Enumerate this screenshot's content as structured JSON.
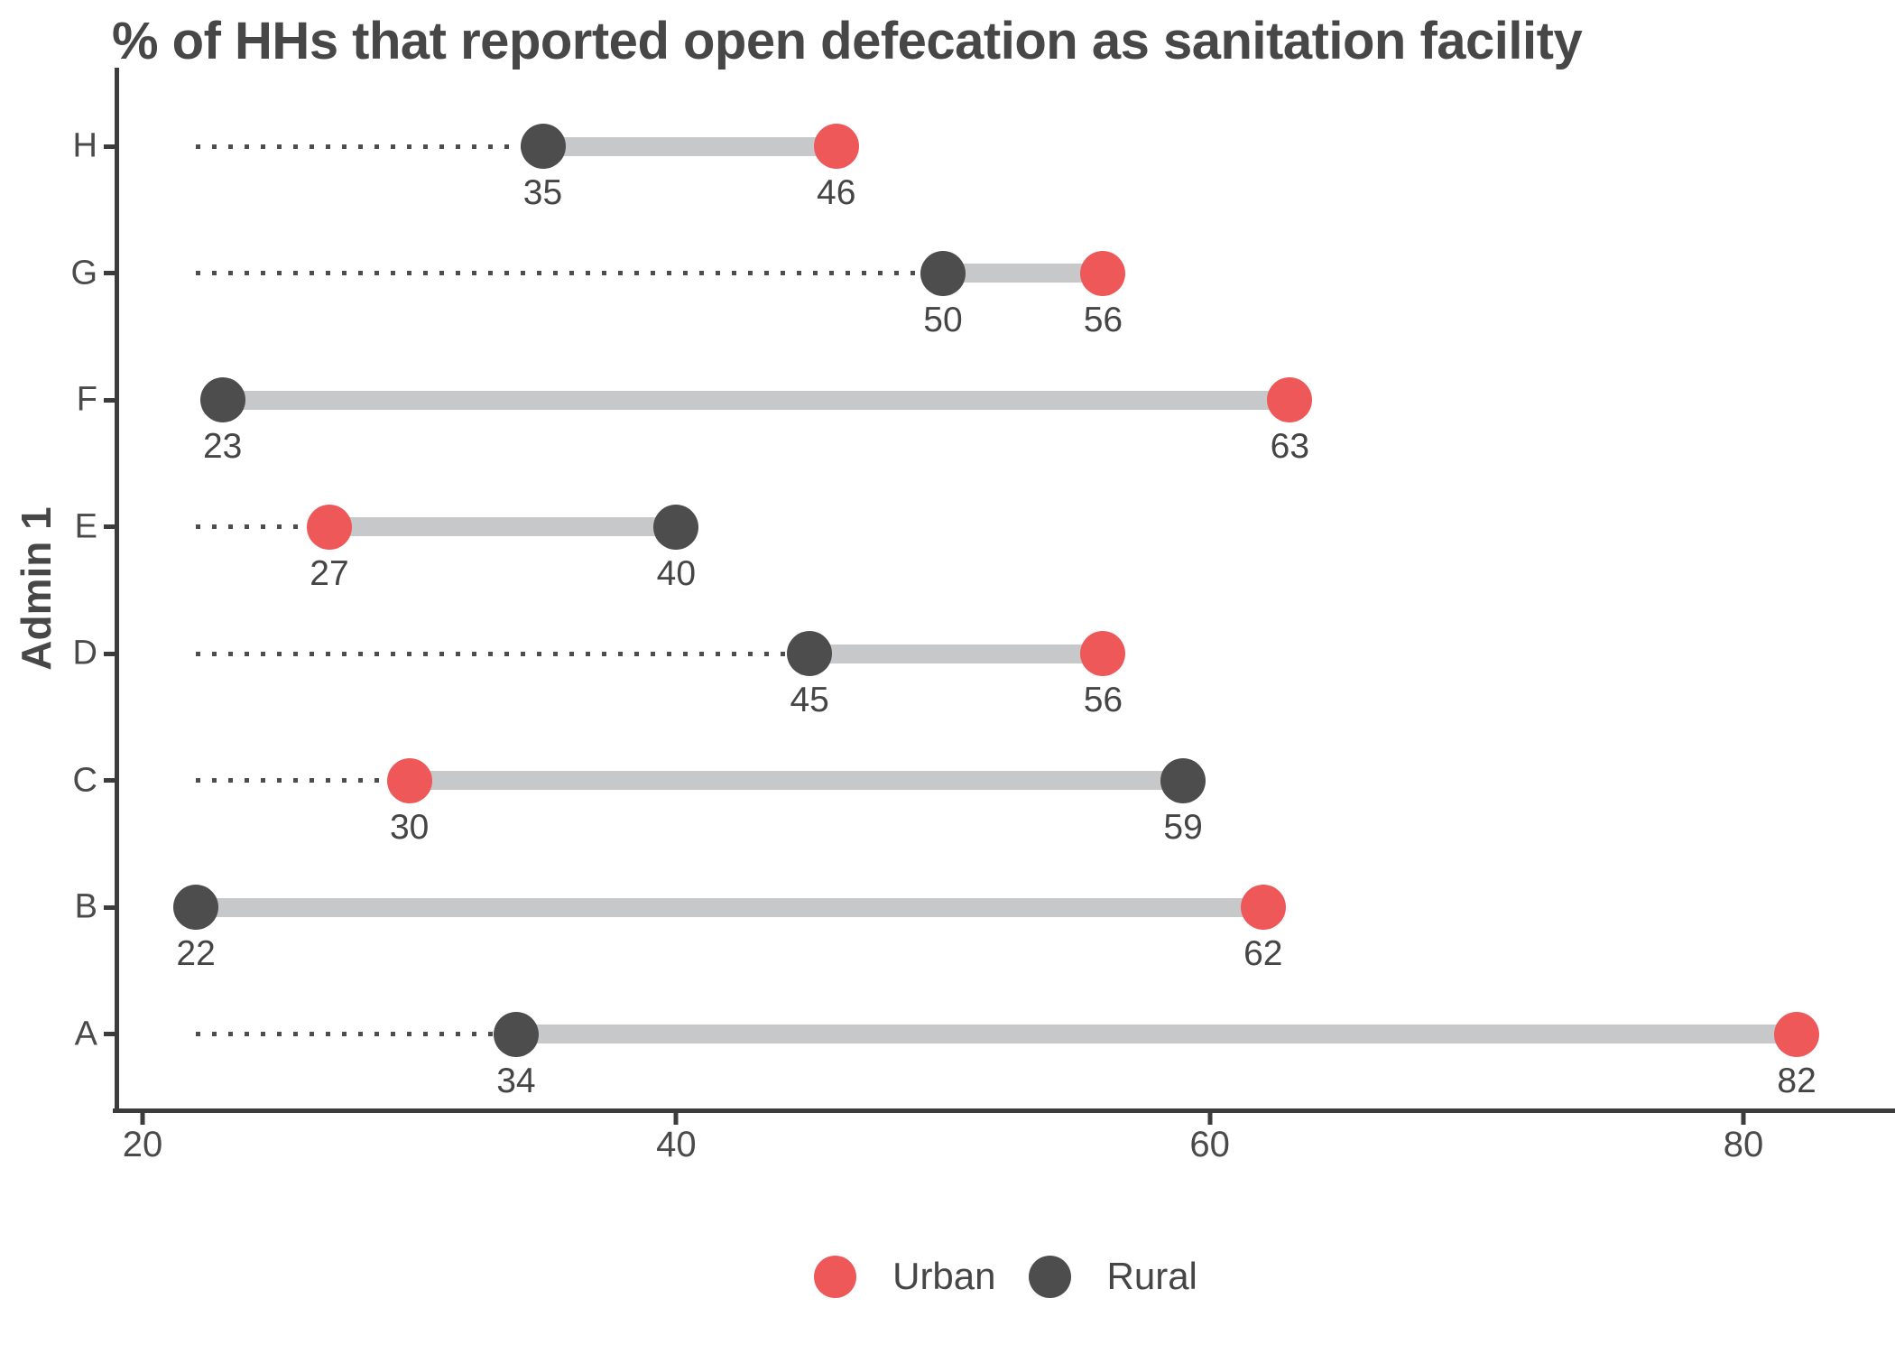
{
  "chart_data": {
    "type": "dumbbell",
    "title": "% of HHs that reported open defecation as sanitation facility",
    "ylabel": "Admin 1",
    "xlabel": "",
    "x_ticks": [
      20,
      40,
      60,
      80
    ],
    "xlim": [
      19,
      86
    ],
    "grid": false,
    "legend_position": "bottom-center",
    "leader_start": 22,
    "rows": [
      {
        "category": "H",
        "rural": 35,
        "urban": 46
      },
      {
        "category": "G",
        "rural": 50,
        "urban": 56
      },
      {
        "category": "F",
        "rural": 23,
        "urban": 63
      },
      {
        "category": "E",
        "rural": 40,
        "urban": 27
      },
      {
        "category": "D",
        "rural": 45,
        "urban": 56
      },
      {
        "category": "C",
        "rural": 59,
        "urban": 30
      },
      {
        "category": "B",
        "rural": 22,
        "urban": 62
      },
      {
        "category": "A",
        "rural": 34,
        "urban": 82
      }
    ],
    "legend": [
      {
        "label": "Urban",
        "color": "#EE5859"
      },
      {
        "label": "Rural",
        "color": "#4D4D4D"
      }
    ],
    "colors": {
      "urban": "#EE5859",
      "rural": "#4D4D4D",
      "band": "#C7C8CA",
      "leader": "#4D4D4D",
      "axis": "#3C3C3C",
      "title_text": "#474747",
      "tick_text": "#4A4A4A",
      "value_text": "#454545"
    }
  }
}
